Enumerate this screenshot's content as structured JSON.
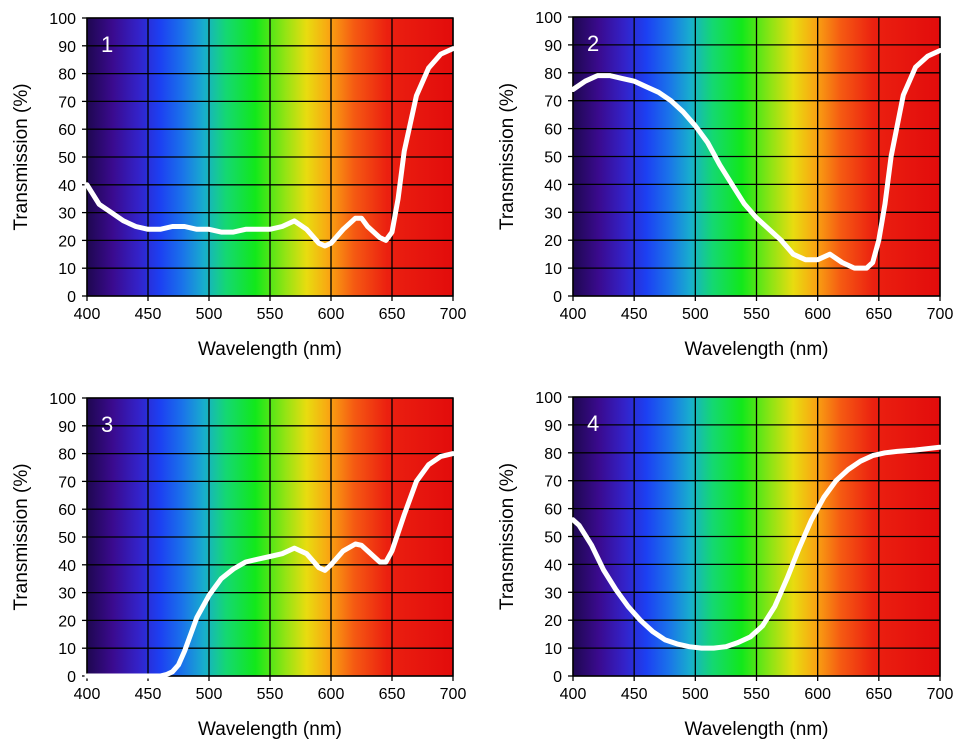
{
  "chart_data": [
    {
      "type": "line",
      "panel_label": "1",
      "xlabel": "Wavelength (nm)",
      "ylabel": "Transmission (%)",
      "xlim": [
        400,
        700
      ],
      "ylim": [
        0,
        100
      ],
      "xticks": [
        "400",
        "450",
        "500",
        "550",
        "600",
        "650",
        "700"
      ],
      "yticks": [
        "0",
        "10",
        "20",
        "30",
        "40",
        "50",
        "60",
        "70",
        "80",
        "90",
        "100"
      ],
      "grid": true,
      "background": "visible-spectrum gradient",
      "line_color": "#ffffff",
      "series": [
        {
          "x": [
            400,
            410,
            420,
            430,
            440,
            450,
            460,
            470,
            480,
            490,
            500,
            510,
            520,
            530,
            540,
            550,
            560,
            570,
            580,
            590,
            595,
            600,
            610,
            620,
            625,
            630,
            640,
            645,
            650,
            655,
            660,
            670,
            680,
            690,
            700
          ],
          "y": [
            40,
            33,
            30,
            27,
            25,
            24,
            24,
            25,
            25,
            24,
            24,
            23,
            23,
            24,
            24,
            24,
            25,
            27,
            24,
            19,
            18,
            19,
            24,
            28,
            28,
            25,
            21,
            20,
            23,
            35,
            52,
            72,
            82,
            87,
            89
          ]
        }
      ]
    },
    {
      "type": "line",
      "panel_label": "2",
      "xlabel": "Wavelength (nm)",
      "ylabel": "Transmission (%)",
      "xlim": [
        400,
        700
      ],
      "ylim": [
        0,
        100
      ],
      "xticks": [
        "400",
        "450",
        "500",
        "550",
        "600",
        "650",
        "700"
      ],
      "yticks": [
        "0",
        "10",
        "20",
        "30",
        "40",
        "50",
        "60",
        "70",
        "80",
        "90",
        "100"
      ],
      "grid": true,
      "background": "visible-spectrum gradient",
      "line_color": "#ffffff",
      "series": [
        {
          "x": [
            400,
            410,
            420,
            430,
            440,
            450,
            460,
            470,
            480,
            490,
            500,
            510,
            520,
            530,
            540,
            550,
            560,
            570,
            580,
            590,
            600,
            610,
            620,
            630,
            640,
            645,
            650,
            655,
            660,
            670,
            680,
            690,
            700
          ],
          "y": [
            74,
            77,
            79,
            79,
            78,
            77,
            75,
            73,
            70,
            66,
            61,
            55,
            47,
            40,
            33,
            28,
            24,
            20,
            15,
            13,
            13,
            15,
            12,
            10,
            10,
            12,
            20,
            33,
            50,
            72,
            82,
            86,
            88
          ]
        }
      ]
    },
    {
      "type": "line",
      "panel_label": "3",
      "xlabel": "Wavelength (nm)",
      "ylabel": "Transmission (%)",
      "xlim": [
        400,
        700
      ],
      "ylim": [
        0,
        100
      ],
      "xticks": [
        "400",
        "450",
        "500",
        "550",
        "600",
        "650",
        "700"
      ],
      "yticks": [
        "0",
        "10",
        "20",
        "30",
        "40",
        "50",
        "60",
        "70",
        "80",
        "90",
        "100"
      ],
      "grid": true,
      "background": "visible-spectrum gradient",
      "line_color": "#ffffff",
      "series": [
        {
          "x": [
            400,
            420,
            440,
            460,
            465,
            470,
            475,
            480,
            485,
            490,
            500,
            510,
            520,
            530,
            540,
            550,
            560,
            570,
            580,
            590,
            595,
            600,
            610,
            620,
            625,
            630,
            640,
            645,
            650,
            660,
            670,
            680,
            690,
            700
          ],
          "y": [
            0,
            0,
            0,
            0,
            0.5,
            1.5,
            4,
            9,
            15,
            21,
            29,
            35,
            38.5,
            41,
            42,
            43,
            44,
            46,
            44,
            39,
            38,
            40,
            45,
            47.5,
            47,
            45,
            41,
            41,
            45,
            58,
            70,
            76,
            79,
            80
          ]
        }
      ]
    },
    {
      "type": "line",
      "panel_label": "4",
      "xlabel": "Wavelength (nm)",
      "ylabel": "Transmission (%)",
      "xlim": [
        400,
        700
      ],
      "ylim": [
        0,
        100
      ],
      "xticks": [
        "400",
        "450",
        "500",
        "550",
        "600",
        "650",
        "700"
      ],
      "yticks": [
        "0",
        "10",
        "20",
        "30",
        "40",
        "50",
        "60",
        "70",
        "80",
        "90",
        "100"
      ],
      "grid": true,
      "background": "visible-spectrum gradient",
      "line_color": "#ffffff",
      "series": [
        {
          "x": [
            400,
            405,
            415,
            425,
            435,
            445,
            455,
            465,
            475,
            485,
            495,
            505,
            515,
            525,
            535,
            545,
            555,
            565,
            575,
            585,
            595,
            605,
            615,
            625,
            635,
            645,
            655,
            665,
            680,
            700
          ],
          "y": [
            56,
            54,
            47,
            38,
            31,
            25,
            20,
            16,
            13,
            11.5,
            10.5,
            10,
            10,
            10.5,
            12,
            14,
            18,
            25,
            35,
            46,
            56,
            64,
            70,
            74,
            77,
            79,
            80,
            80.5,
            81,
            82
          ]
        }
      ]
    }
  ]
}
